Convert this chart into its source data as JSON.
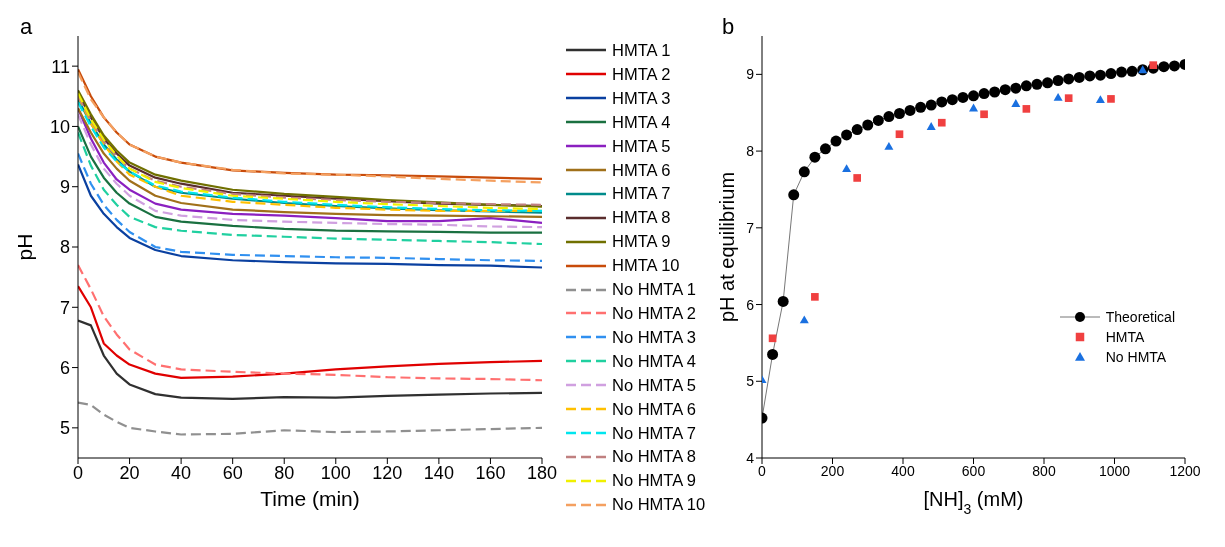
{
  "chart_data": [
    {
      "type": "line",
      "title": "a",
      "xlabel": "Time (min)",
      "ylabel": "pH",
      "xlim": [
        0,
        180
      ],
      "xticks": [
        0,
        20,
        40,
        60,
        80,
        100,
        120,
        140,
        160,
        180
      ],
      "ylim": [
        4.5,
        11.5
      ],
      "yticks": [
        5,
        6,
        7,
        8,
        9,
        10,
        11
      ],
      "legend": "right",
      "x": [
        0,
        5,
        10,
        15,
        20,
        30,
        40,
        60,
        80,
        100,
        120,
        140,
        160,
        180
      ],
      "series": [
        {
          "name": "HMTA 1",
          "color": "#303030",
          "line_style": "solid",
          "values": [
            6.78,
            6.7,
            6.2,
            5.9,
            5.72,
            5.56,
            5.5,
            5.48,
            5.51,
            5.5,
            5.53,
            5.55,
            5.57,
            5.58
          ]
        },
        {
          "name": "HMTA 2",
          "color": "#e00000",
          "line_style": "solid",
          "values": [
            7.35,
            7.0,
            6.4,
            6.2,
            6.05,
            5.9,
            5.83,
            5.85,
            5.9,
            5.97,
            6.02,
            6.06,
            6.09,
            6.11
          ]
        },
        {
          "name": "HMTA 3",
          "color": "#0a40a0",
          "line_style": "solid",
          "values": [
            9.37,
            8.85,
            8.55,
            8.33,
            8.15,
            7.95,
            7.85,
            7.78,
            7.75,
            7.73,
            7.72,
            7.7,
            7.69,
            7.66
          ]
        },
        {
          "name": "HMTA 4",
          "color": "#1a7040",
          "line_style": "solid",
          "values": [
            10.0,
            9.5,
            9.15,
            8.9,
            8.72,
            8.5,
            8.42,
            8.35,
            8.3,
            8.27,
            8.26,
            8.25,
            8.24,
            8.24
          ]
        },
        {
          "name": "HMTA 5",
          "color": "#8b20c0",
          "line_style": "solid",
          "values": [
            10.3,
            9.8,
            9.4,
            9.12,
            8.95,
            8.72,
            8.62,
            8.55,
            8.52,
            8.48,
            8.43,
            8.43,
            8.48,
            8.4
          ]
        },
        {
          "name": "HMTA 6",
          "color": "#a0701a",
          "line_style": "solid",
          "values": [
            10.3,
            9.9,
            9.55,
            9.3,
            9.1,
            8.85,
            8.73,
            8.62,
            8.58,
            8.55,
            8.53,
            8.52,
            8.51,
            8.5
          ]
        },
        {
          "name": "HMTA 7",
          "color": "#008b8b",
          "line_style": "solid",
          "values": [
            10.45,
            10.05,
            9.7,
            9.45,
            9.25,
            9.0,
            8.9,
            8.8,
            8.73,
            8.68,
            8.64,
            8.61,
            8.59,
            8.57
          ]
        },
        {
          "name": "HMTA 8",
          "color": "#5a2d2d",
          "line_style": "solid",
          "values": [
            10.55,
            10.15,
            9.8,
            9.55,
            9.35,
            9.15,
            9.05,
            8.9,
            8.85,
            8.8,
            8.76,
            8.72,
            8.7,
            8.68
          ]
        },
        {
          "name": "HMTA 9",
          "color": "#707000",
          "line_style": "solid",
          "values": [
            10.6,
            10.2,
            9.85,
            9.6,
            9.4,
            9.2,
            9.1,
            8.95,
            8.88,
            8.83,
            8.78,
            8.74,
            8.7,
            8.67
          ]
        },
        {
          "name": "HMTA 10",
          "color": "#c84b0a",
          "line_style": "solid",
          "values": [
            10.95,
            10.5,
            10.15,
            9.9,
            9.7,
            9.5,
            9.4,
            9.27,
            9.23,
            9.2,
            9.19,
            9.17,
            9.15,
            9.13
          ]
        },
        {
          "name": "No HMTA 1",
          "color": "#909090",
          "line_style": "dashed",
          "values": [
            5.42,
            5.38,
            5.22,
            5.1,
            5.0,
            4.94,
            4.89,
            4.9,
            4.96,
            4.93,
            4.94,
            4.96,
            4.98,
            5.0
          ]
        },
        {
          "name": "No HMTA 2",
          "color": "#ff7070",
          "line_style": "dashed",
          "values": [
            7.7,
            7.3,
            6.85,
            6.55,
            6.3,
            6.05,
            5.97,
            5.93,
            5.9,
            5.88,
            5.84,
            5.82,
            5.81,
            5.79
          ]
        },
        {
          "name": "No HMTA 3",
          "color": "#3090f0",
          "line_style": "dashed",
          "values": [
            9.55,
            9.05,
            8.7,
            8.45,
            8.25,
            8.0,
            7.92,
            7.87,
            7.85,
            7.83,
            7.82,
            7.8,
            7.78,
            7.77
          ]
        },
        {
          "name": "No HMTA 4",
          "color": "#20d0a0",
          "line_style": "dashed",
          "values": [
            9.9,
            9.35,
            8.95,
            8.7,
            8.5,
            8.33,
            8.27,
            8.2,
            8.17,
            8.14,
            8.12,
            8.1,
            8.08,
            8.05
          ]
        },
        {
          "name": "No HMTA 5",
          "color": "#d0a0e0",
          "line_style": "dashed",
          "values": [
            10.2,
            9.7,
            9.3,
            9.05,
            8.85,
            8.6,
            8.52,
            8.45,
            8.42,
            8.4,
            8.38,
            8.37,
            8.34,
            8.33
          ]
        },
        {
          "name": "No HMTA 6",
          "color": "#ffc000",
          "line_style": "dashed",
          "values": [
            10.5,
            10.05,
            9.7,
            9.42,
            9.2,
            9.0,
            8.85,
            8.75,
            8.7,
            8.65,
            8.62,
            8.6,
            8.6,
            8.6
          ]
        },
        {
          "name": "No HMTA 7",
          "color": "#00e5ee",
          "line_style": "dashed",
          "values": [
            10.4,
            10.0,
            9.65,
            9.42,
            9.25,
            9.02,
            8.92,
            8.82,
            8.75,
            8.7,
            8.66,
            8.63,
            8.61,
            8.6
          ]
        },
        {
          "name": "No HMTA 8",
          "color": "#c08080",
          "line_style": "dashed",
          "values": [
            10.5,
            10.1,
            9.75,
            9.5,
            9.3,
            9.1,
            9.0,
            8.88,
            8.82,
            8.78,
            8.75,
            8.73,
            8.71,
            8.7
          ]
        },
        {
          "name": "No HMTA 9",
          "color": "#f0f000",
          "line_style": "dashed",
          "values": [
            10.55,
            10.12,
            9.78,
            9.52,
            9.3,
            9.08,
            8.98,
            8.85,
            8.8,
            8.75,
            8.71,
            8.68,
            8.65,
            8.63
          ]
        },
        {
          "name": "No HMTA 10",
          "color": "#f4a060",
          "line_style": "dashed",
          "values": [
            10.9,
            10.45,
            10.15,
            9.9,
            9.7,
            9.5,
            9.4,
            9.28,
            9.22,
            9.2,
            9.17,
            9.13,
            9.1,
            9.07
          ]
        }
      ]
    },
    {
      "type": "scatter",
      "title": "b",
      "xlabel": "[NH]$_{3}$ (mM)",
      "ylabel": "pH at equilibrium",
      "xlim": [
        0,
        1200
      ],
      "xticks": [
        0,
        200,
        400,
        600,
        800,
        1000,
        1200
      ],
      "ylim": [
        4,
        9.5
      ],
      "yticks": [
        4,
        5,
        6,
        7,
        8,
        9
      ],
      "legend": "center right",
      "series": [
        {
          "name": "Theoretical",
          "type": "line",
          "marker": "circle",
          "color": "#000000",
          "x": [
            0,
            30,
            60,
            90,
            120,
            150,
            180,
            210,
            240,
            270,
            300,
            330,
            360,
            390,
            420,
            450,
            480,
            510,
            540,
            570,
            600,
            630,
            660,
            690,
            720,
            750,
            780,
            810,
            840,
            870,
            900,
            930,
            960,
            990,
            1020,
            1050,
            1080,
            1110,
            1140,
            1170,
            1200
          ],
          "values": [
            4.52,
            5.35,
            6.04,
            7.43,
            7.73,
            7.92,
            8.03,
            8.13,
            8.21,
            8.28,
            8.34,
            8.4,
            8.45,
            8.49,
            8.53,
            8.57,
            8.6,
            8.64,
            8.67,
            8.7,
            8.72,
            8.75,
            8.77,
            8.8,
            8.82,
            8.85,
            8.87,
            8.89,
            8.92,
            8.94,
            8.96,
            8.98,
            8.99,
            9.01,
            9.03,
            9.04,
            9.06,
            9.08,
            9.1,
            9.11,
            9.13
          ]
        },
        {
          "name": "HMTA",
          "marker": "square",
          "color": "#f04040",
          "x": [
            30,
            150,
            270,
            390,
            510,
            630,
            750,
            870,
            990,
            1110
          ],
          "values": [
            5.56,
            6.1,
            7.65,
            8.22,
            8.37,
            8.48,
            8.55,
            8.69,
            8.68,
            9.12
          ]
        },
        {
          "name": "No HMTA",
          "marker": "triangle",
          "color": "#1a70e0",
          "x": [
            0,
            120,
            240,
            360,
            480,
            600,
            720,
            840,
            960,
            1080
          ],
          "values": [
            5.02,
            5.8,
            7.77,
            8.06,
            8.32,
            8.56,
            8.62,
            8.7,
            8.67,
            9.06
          ]
        }
      ]
    }
  ]
}
